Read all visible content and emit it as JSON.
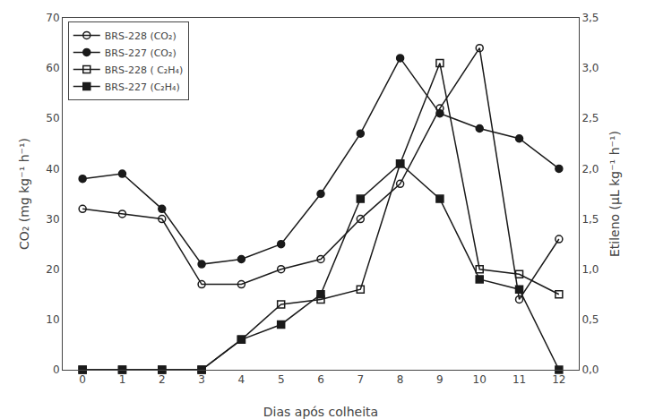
{
  "chart_data": {
    "type": "line",
    "xlabel": "Dias após colheita",
    "ylabel": "CO₂ (mg kg⁻¹ h⁻¹)",
    "y2label": "Etileno (μL kg⁻¹ h⁻¹)",
    "x": [
      0,
      1,
      2,
      3,
      4,
      5,
      6,
      7,
      8,
      9,
      10,
      11,
      12
    ],
    "xlim": [
      -0.5,
      12.5
    ],
    "xticks": [
      0,
      1,
      2,
      3,
      4,
      5,
      6,
      7,
      8,
      9,
      10,
      11,
      12
    ],
    "ylim": [
      0,
      70
    ],
    "yticks": [
      0,
      10,
      20,
      30,
      40,
      50,
      60,
      70
    ],
    "y2lim": [
      0.0,
      3.5
    ],
    "y2ticks": [
      {
        "value": 0.0,
        "label": "0,0"
      },
      {
        "value": 0.5,
        "label": "0,5"
      },
      {
        "value": 1.0,
        "label": "1,0"
      },
      {
        "value": 1.5,
        "label": "1,5"
      },
      {
        "value": 2.0,
        "label": "2,0"
      },
      {
        "value": 2.5,
        "label": "2,5"
      },
      {
        "value": 3.0,
        "label": "3,0"
      },
      {
        "value": 3.5,
        "label": "3,5"
      }
    ],
    "grid": false,
    "legend": "upper left",
    "series": [
      {
        "name": "BRS-228 (CO₂)",
        "color": "#1a1a1a",
        "marker": "circle-open",
        "values": [
          32,
          31,
          30,
          17,
          17,
          20,
          22,
          30,
          37,
          52,
          64,
          14,
          26
        ]
      },
      {
        "name": "BRS-227 (CO₂)",
        "color": "#1a1a1a",
        "marker": "circle",
        "values": [
          38,
          39,
          32,
          21,
          22,
          25,
          35,
          47,
          62,
          51,
          48,
          46,
          40
        ]
      },
      {
        "name": "BRS-228 ( C₂H₄)",
        "color": "#1a1a1a",
        "marker": "square-open",
        "axis": "y2",
        "values": [
          0.0,
          0.0,
          0.0,
          0.0,
          0.3,
          0.65,
          0.7,
          0.8,
          2.05,
          3.05,
          1.0,
          0.95,
          0.75
        ]
      },
      {
        "name": "BRS-227 (C₂H₄)",
        "color": "#1a1a1a",
        "marker": "square",
        "axis": "y2",
        "values": [
          0.0,
          0.0,
          0.0,
          0.0,
          0.3,
          0.45,
          0.75,
          1.7,
          2.05,
          1.7,
          0.9,
          0.8,
          0.0
        ]
      }
    ]
  }
}
